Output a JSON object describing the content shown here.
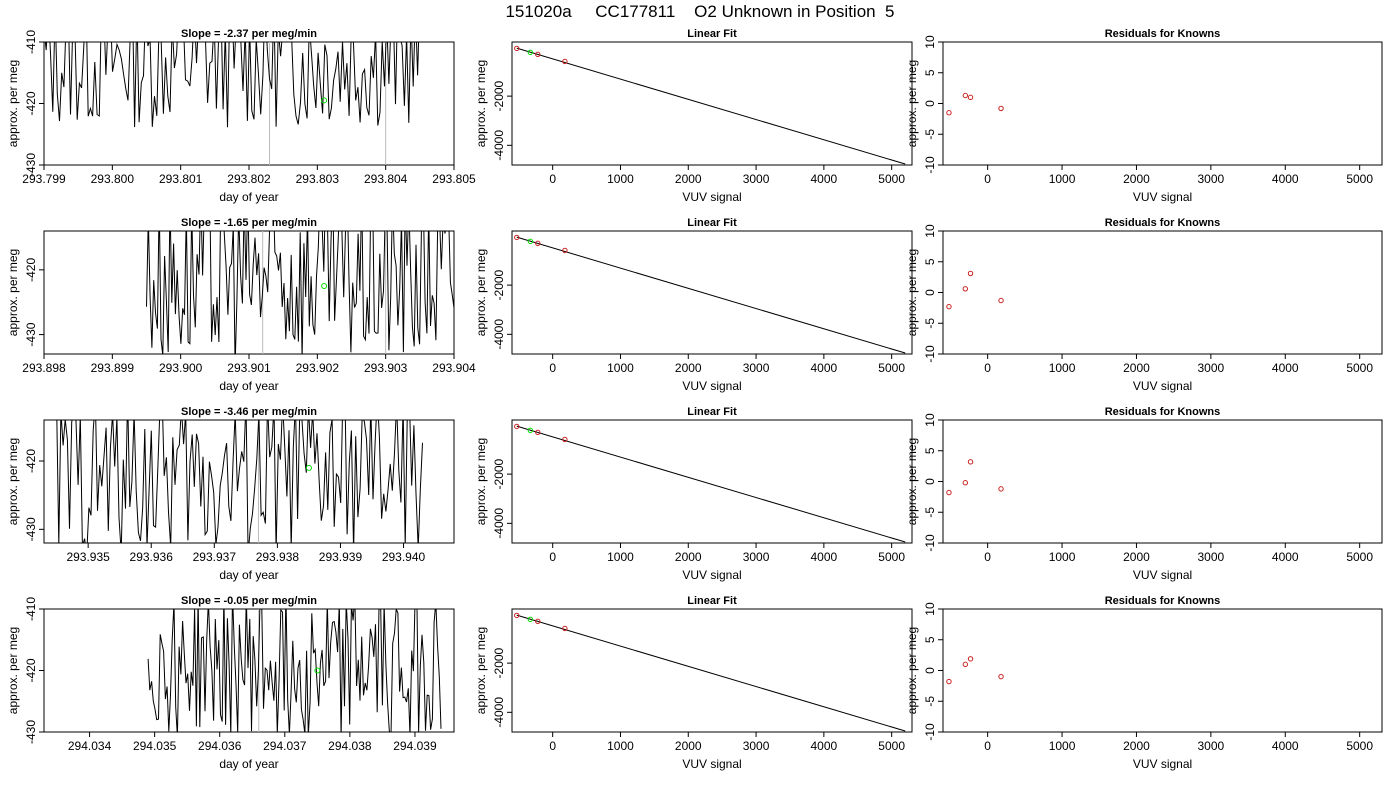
{
  "page_title": "151020a     CC177811    O2 Unknown in Position  5",
  "colors": {
    "line": "#000000",
    "green": "#00dd00",
    "red": "#cc2222",
    "gray": "#bbbbbb"
  },
  "chart_data": [
    {
      "type": "line",
      "title": "Slope =  -2.37  per meg/min",
      "xlabel": "day of year",
      "ylabel": "approx. per meg",
      "xlim": [
        293.799,
        293.805
      ],
      "ylim": [
        -430,
        -410
      ],
      "xticks": [
        293.799,
        293.8,
        293.801,
        293.802,
        293.803,
        293.804,
        293.805
      ],
      "xtick_labels": [
        "293.799",
        "293.800",
        "293.801",
        "293.802",
        "293.803",
        "293.804",
        "293.805"
      ],
      "yticks": [
        -410,
        -420,
        -430
      ],
      "ytick_labels": [
        "-410",
        "-420",
        "-430"
      ],
      "trace_start": 293.799,
      "trace_end": 293.8045,
      "trace_amplitude": 11,
      "trace_center": -413,
      "gray_lines": [
        293.8023,
        293.804
      ],
      "point": {
        "x": 293.8031,
        "y": -419.5
      }
    },
    {
      "type": "line",
      "title": "Linear Fit",
      "xlabel": "VUV signal",
      "ylabel": "approx. per meg",
      "xlim": [
        -600,
        5300
      ],
      "ylim": [
        -4800,
        200
      ],
      "xticks": [
        0,
        1000,
        2000,
        3000,
        4000,
        5000
      ],
      "xtick_labels": [
        "0",
        "1000",
        "2000",
        "3000",
        "4000",
        "5000"
      ],
      "yticks": [
        -2000,
        -4000
      ],
      "ytick_labels": [
        "-2000",
        "-4000"
      ],
      "fit": {
        "x": [
          -530,
          5200
        ],
        "y": [
          -50,
          -4760
        ]
      },
      "red_points": [
        {
          "x": -530,
          "y": -60
        },
        {
          "x": -220,
          "y": -300
        },
        {
          "x": 180,
          "y": -590
        }
      ],
      "green_points": [
        {
          "x": -330,
          "y": -220
        }
      ]
    },
    {
      "type": "scatter",
      "title": "Residuals for Knowns",
      "xlabel": "VUV signal",
      "ylabel": "approx. per meg",
      "xlim": [
        -600,
        5300
      ],
      "ylim": [
        -10,
        10
      ],
      "xticks": [
        0,
        1000,
        2000,
        3000,
        4000,
        5000
      ],
      "xtick_labels": [
        "0",
        "1000",
        "2000",
        "3000",
        "4000",
        "5000"
      ],
      "yticks": [
        10,
        5,
        0,
        -5,
        -10
      ],
      "ytick_labels": [
        "10",
        "5",
        "0",
        "-5",
        "-10"
      ],
      "points": [
        {
          "x": -520,
          "y": -1.5
        },
        {
          "x": -300,
          "y": 1.3
        },
        {
          "x": -230,
          "y": 1.0
        },
        {
          "x": 180,
          "y": -0.8
        }
      ]
    },
    {
      "type": "line",
      "title": "Slope =  -1.65  per meg/min",
      "xlabel": "day of year",
      "ylabel": "approx. per meg",
      "xlim": [
        293.898,
        293.904
      ],
      "ylim": [
        -433,
        -414
      ],
      "xticks": [
        293.898,
        293.899,
        293.9,
        293.901,
        293.902,
        293.903,
        293.904
      ],
      "xtick_labels": [
        "293.898",
        "293.899",
        "293.900",
        "293.901",
        "293.902",
        "293.903",
        "293.904"
      ],
      "yticks": [
        -420,
        -430
      ],
      "ytick_labels": [
        "-420",
        "-430"
      ],
      "trace_start": 293.8995,
      "trace_end": 293.904,
      "trace_amplitude": 14,
      "trace_center": -421,
      "gray_lines": [
        293.9012,
        293.903
      ],
      "point": {
        "x": 293.9021,
        "y": -422.5
      }
    },
    {
      "type": "line",
      "title": "Linear Fit",
      "xlabel": "VUV signal",
      "ylabel": "approx. per meg",
      "xlim": [
        -600,
        5300
      ],
      "ylim": [
        -4800,
        200
      ],
      "xticks": [
        0,
        1000,
        2000,
        3000,
        4000,
        5000
      ],
      "xtick_labels": [
        "0",
        "1000",
        "2000",
        "3000",
        "4000",
        "5000"
      ],
      "yticks": [
        -2000,
        -4000
      ],
      "ytick_labels": [
        "-2000",
        "-4000"
      ],
      "fit": {
        "x": [
          -530,
          5200
        ],
        "y": [
          -50,
          -4760
        ]
      },
      "red_points": [
        {
          "x": -530,
          "y": -60
        },
        {
          "x": -220,
          "y": -300
        },
        {
          "x": 180,
          "y": -590
        }
      ],
      "green_points": [
        {
          "x": -330,
          "y": -220
        }
      ]
    },
    {
      "type": "scatter",
      "title": "Residuals for Knowns",
      "xlabel": "VUV signal",
      "ylabel": "approx. per meg",
      "xlim": [
        -600,
        5300
      ],
      "ylim": [
        -10,
        10
      ],
      "xticks": [
        0,
        1000,
        2000,
        3000,
        4000,
        5000
      ],
      "xtick_labels": [
        "0",
        "1000",
        "2000",
        "3000",
        "4000",
        "5000"
      ],
      "yticks": [
        10,
        5,
        0,
        -5,
        -10
      ],
      "ytick_labels": [
        "10",
        "5",
        "0",
        "-5",
        "-10"
      ],
      "points": [
        {
          "x": -520,
          "y": -2.3
        },
        {
          "x": -300,
          "y": 0.6
        },
        {
          "x": -230,
          "y": 3.1
        },
        {
          "x": 180,
          "y": -1.3
        }
      ]
    },
    {
      "type": "line",
      "title": "Slope =  -3.46  per meg/min",
      "xlabel": "day of year",
      "ylabel": "approx. per meg",
      "xlim": [
        293.9343,
        293.9408
      ],
      "ylim": [
        -432,
        -414
      ],
      "xticks": [
        293.935,
        293.936,
        293.937,
        293.938,
        293.939,
        293.94
      ],
      "xtick_labels": [
        "293.935",
        "293.936",
        "293.937",
        "293.938",
        "293.939",
        "293.940"
      ],
      "yticks": [
        -420,
        -430
      ],
      "ytick_labels": [
        "-420",
        "-430"
      ],
      "trace_start": 293.9345,
      "trace_end": 293.9403,
      "trace_amplitude": 12,
      "trace_center": -422,
      "gray_lines": [
        293.9377
      ],
      "point": {
        "x": 293.9385,
        "y": -421
      }
    },
    {
      "type": "line",
      "title": "Linear Fit",
      "xlabel": "VUV signal",
      "ylabel": "approx. per meg",
      "xlim": [
        -600,
        5300
      ],
      "ylim": [
        -4800,
        200
      ],
      "xticks": [
        0,
        1000,
        2000,
        3000,
        4000,
        5000
      ],
      "xtick_labels": [
        "0",
        "1000",
        "2000",
        "3000",
        "4000",
        "5000"
      ],
      "yticks": [
        -2000,
        -4000
      ],
      "ytick_labels": [
        "-2000",
        "-4000"
      ],
      "fit": {
        "x": [
          -530,
          5200
        ],
        "y": [
          -50,
          -4760
        ]
      },
      "red_points": [
        {
          "x": -530,
          "y": -60
        },
        {
          "x": -220,
          "y": -300
        },
        {
          "x": 180,
          "y": -590
        }
      ],
      "green_points": [
        {
          "x": -330,
          "y": -220
        }
      ]
    },
    {
      "type": "scatter",
      "title": "Residuals for Knowns",
      "xlabel": "VUV signal",
      "ylabel": "approx. per meg",
      "xlim": [
        -600,
        5300
      ],
      "ylim": [
        -10,
        10
      ],
      "xticks": [
        0,
        1000,
        2000,
        3000,
        4000,
        5000
      ],
      "xtick_labels": [
        "0",
        "1000",
        "2000",
        "3000",
        "4000",
        "5000"
      ],
      "yticks": [
        10,
        5,
        0,
        -5,
        -10
      ],
      "ytick_labels": [
        "10",
        "5",
        "0",
        "-5",
        "-10"
      ],
      "points": [
        {
          "x": -520,
          "y": -1.8
        },
        {
          "x": -300,
          "y": -0.2
        },
        {
          "x": -230,
          "y": 3.2
        },
        {
          "x": 180,
          "y": -1.2
        }
      ]
    },
    {
      "type": "line",
      "title": "Slope =  -0.05  per meg/min",
      "xlabel": "day of year",
      "ylabel": "approx. per meg",
      "xlim": [
        294.0333,
        294.0396
      ],
      "ylim": [
        -430,
        -410
      ],
      "xticks": [
        294.034,
        294.035,
        294.036,
        294.037,
        294.038,
        294.039
      ],
      "xtick_labels": [
        "294.034",
        "294.035",
        "294.036",
        "294.037",
        "294.038",
        "294.039"
      ],
      "yticks": [
        -410,
        -420,
        -430
      ],
      "ytick_labels": [
        "-410",
        "-420",
        "-430"
      ],
      "trace_start": 294.0349,
      "trace_end": 294.0394,
      "trace_amplitude": 12,
      "trace_center": -419,
      "gray_lines": [
        294.0366
      ],
      "point": {
        "x": 294.0375,
        "y": -420
      }
    },
    {
      "type": "line",
      "title": "Linear Fit",
      "xlabel": "VUV signal",
      "ylabel": "approx. per meg",
      "xlim": [
        -600,
        5300
      ],
      "ylim": [
        -4800,
        200
      ],
      "xticks": [
        0,
        1000,
        2000,
        3000,
        4000,
        5000
      ],
      "xtick_labels": [
        "0",
        "1000",
        "2000",
        "3000",
        "4000",
        "5000"
      ],
      "yticks": [
        -2000,
        -4000
      ],
      "ytick_labels": [
        "-2000",
        "-4000"
      ],
      "fit": {
        "x": [
          -530,
          5200
        ],
        "y": [
          -50,
          -4760
        ]
      },
      "red_points": [
        {
          "x": -530,
          "y": -60
        },
        {
          "x": -220,
          "y": -300
        },
        {
          "x": 180,
          "y": -590
        }
      ],
      "green_points": [
        {
          "x": -330,
          "y": -220
        }
      ]
    },
    {
      "type": "scatter",
      "title": "Residuals for Knowns",
      "xlabel": "VUV signal",
      "ylabel": "approx. per meg",
      "xlim": [
        -600,
        5300
      ],
      "ylim": [
        -10,
        10
      ],
      "xticks": [
        0,
        1000,
        2000,
        3000,
        4000,
        5000
      ],
      "xtick_labels": [
        "0",
        "1000",
        "2000",
        "3000",
        "4000",
        "5000"
      ],
      "yticks": [
        10,
        5,
        0,
        -5,
        -10
      ],
      "ytick_labels": [
        "10",
        "5",
        "0",
        "-5",
        "-10"
      ],
      "points": [
        {
          "x": -520,
          "y": -1.8
        },
        {
          "x": -300,
          "y": 1.0
        },
        {
          "x": -230,
          "y": 1.9
        },
        {
          "x": 180,
          "y": -1.0
        }
      ]
    }
  ]
}
